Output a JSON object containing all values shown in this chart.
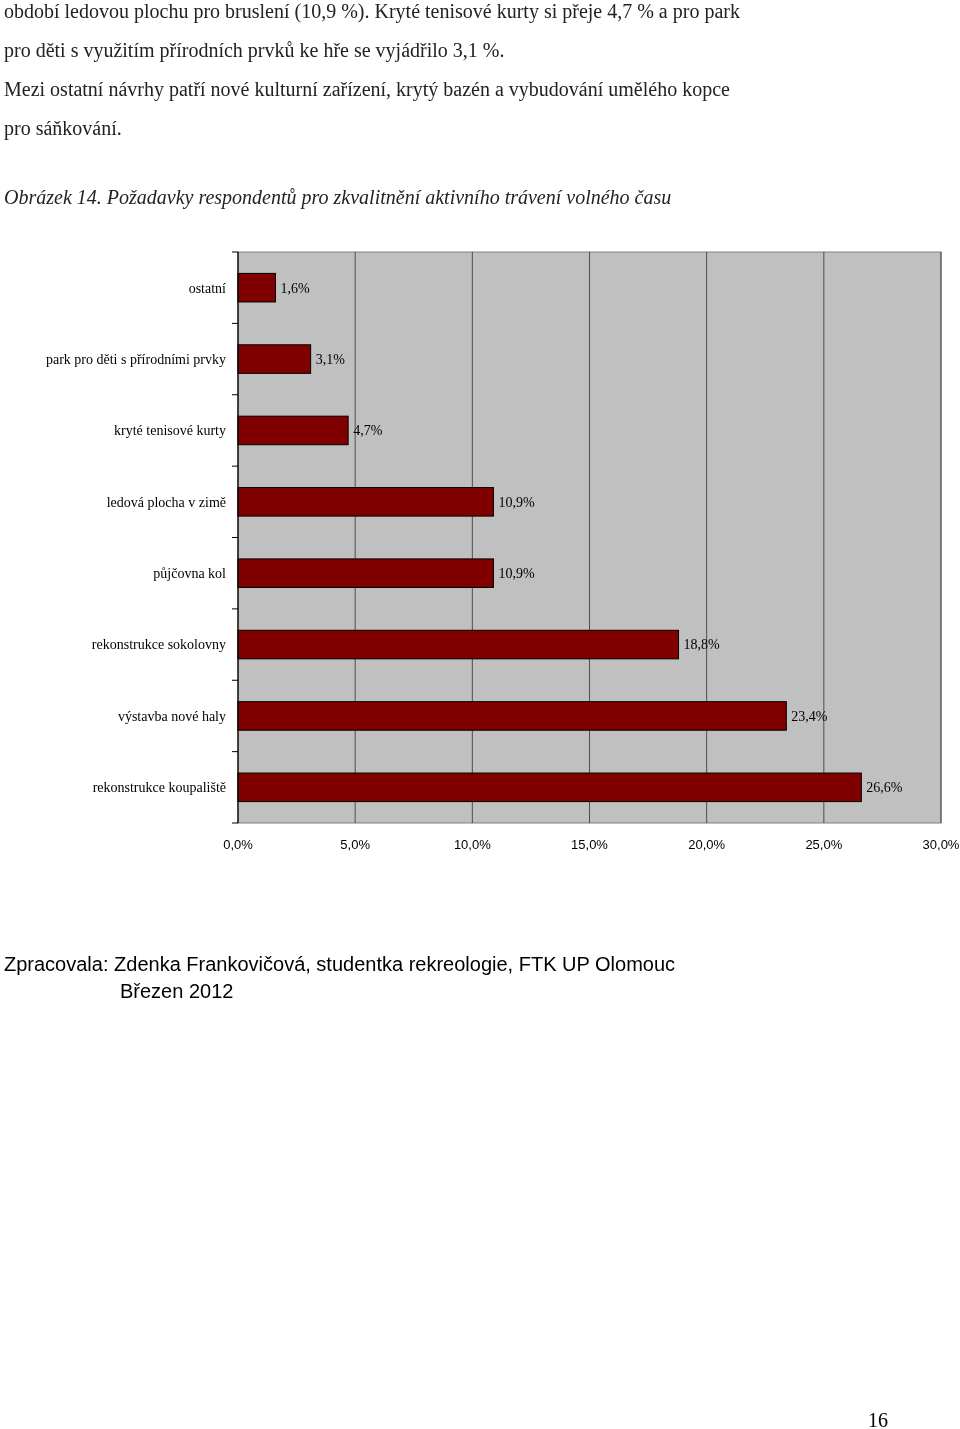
{
  "chart_data": {
    "type": "bar",
    "orientation": "horizontal",
    "title": "Obrázek 14. Požadavky respondentů pro zkvalitnění aktivního trávení volného času",
    "categories": [
      "ostatní",
      "park pro děti s přírodními prvky",
      "kryté tenisové kurty",
      "ledová plocha v zimě",
      "půjčovna kol",
      "rekonstrukce sokolovny",
      "výstavba nové haly",
      "rekonstrukce koupaliště"
    ],
    "values": [
      1.6,
      3.1,
      4.7,
      10.9,
      10.9,
      18.8,
      23.4,
      26.6
    ],
    "value_labels": [
      "1,6%",
      "3,1%",
      "4,7%",
      "10,9%",
      "10,9%",
      "18,8%",
      "23,4%",
      "26,6%"
    ],
    "color": "#800000",
    "xlim": [
      0,
      30
    ],
    "xticks": [
      {
        "value": 0,
        "label": "0,0%"
      },
      {
        "value": 5,
        "label": "5,0%"
      },
      {
        "value": 10,
        "label": "10,0%"
      },
      {
        "value": 15,
        "label": "15,0%"
      },
      {
        "value": 20,
        "label": "20,0%"
      },
      {
        "value": 25,
        "label": "25,0%"
      },
      {
        "value": 30,
        "label": "30,0%"
      }
    ],
    "grid": "x",
    "annotations": [
      "období ledovou plochu pro bruslení (10,9 %). Kryté tenisové kurty si přeje 4,7 % a pro park",
      "pro děti s využitím přírodních prvků ke hře se vyjádřilo 3,1 %.",
      "Mezi ostatní návrhy patří nové kulturní zařízení, krytý bazén a vybudování umělého kopce",
      "pro sáňkování.",
      "Zpracovala: Zdenka Frankovičová, studentka rekreologie, FTK UP Olomouc",
      "Březen 2012",
      "16"
    ]
  }
}
